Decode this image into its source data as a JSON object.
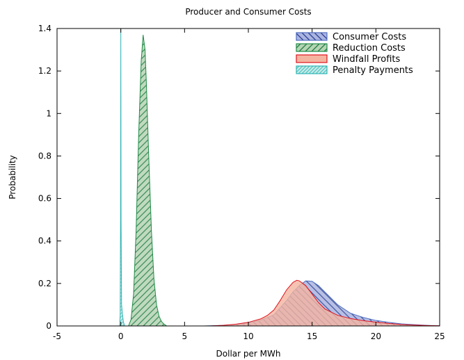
{
  "chart_data": {
    "type": "area",
    "title": "Producer and Consumer Costs",
    "xlabel": "Dollar per MWh",
    "ylabel": "Probability",
    "xlim": [
      -5,
      25
    ],
    "ylim": [
      0,
      1.4
    ],
    "xticks": [
      -5,
      0,
      5,
      10,
      15,
      20,
      25
    ],
    "yticks": [
      0,
      0.2,
      0.4,
      0.6,
      0.8,
      1,
      1.2,
      1.4
    ],
    "xtick_labels": [
      "-5",
      "0",
      "5",
      "10",
      "15",
      "20",
      "25"
    ],
    "ytick_labels": [
      "0",
      "0.2",
      "0.4",
      "0.6",
      "0.8",
      "1",
      "1.2",
      "1.4"
    ],
    "legend_position": "top-right",
    "grid": false,
    "series": [
      {
        "name": "Consumer Costs",
        "fill": "#aab4e0",
        "stroke": "#4f6fc0",
        "hatch": "#283c90",
        "pattern": "hatch-back",
        "x": [
          6.5,
          8,
          9,
          10,
          11,
          12,
          13,
          13.5,
          14,
          14.5,
          15,
          15.5,
          16,
          16.5,
          17,
          18,
          19,
          20,
          21,
          22,
          23,
          24,
          25
        ],
        "y": [
          0,
          0.003,
          0.007,
          0.014,
          0.028,
          0.052,
          0.12,
          0.16,
          0.19,
          0.212,
          0.21,
          0.19,
          0.16,
          0.13,
          0.1,
          0.06,
          0.04,
          0.026,
          0.017,
          0.01,
          0.006,
          0.003,
          0.001
        ]
      },
      {
        "name": "Reduction Costs",
        "fill": "#b4d4b4",
        "stroke": "#1e8c46",
        "hatch": "#1e7a3c",
        "pattern": "hatch-fwd",
        "x": [
          0.6,
          0.8,
          1.0,
          1.2,
          1.4,
          1.6,
          1.75,
          1.9,
          2.0,
          2.2,
          2.4,
          2.6,
          2.8,
          3.0,
          3.2,
          3.4,
          3.6
        ],
        "y": [
          0,
          0.03,
          0.15,
          0.45,
          0.9,
          1.25,
          1.37,
          1.3,
          1.15,
          0.78,
          0.45,
          0.22,
          0.1,
          0.045,
          0.02,
          0.008,
          0
        ]
      },
      {
        "name": "Windfall Profits",
        "fill": "#f4b4a0",
        "stroke": "#e0141e",
        "hatch": "",
        "pattern": "solid",
        "x": [
          7,
          8,
          9,
          10,
          11,
          11.5,
          12,
          12.5,
          13,
          13.5,
          13.8,
          14,
          14.5,
          15,
          15.5,
          16,
          17,
          18,
          19,
          20,
          21,
          22,
          23,
          24,
          25
        ],
        "y": [
          0,
          0.003,
          0.008,
          0.017,
          0.034,
          0.05,
          0.075,
          0.12,
          0.17,
          0.205,
          0.215,
          0.212,
          0.19,
          0.15,
          0.11,
          0.08,
          0.05,
          0.035,
          0.025,
          0.018,
          0.012,
          0.007,
          0.004,
          0.002,
          0.001
        ]
      },
      {
        "name": "Penalty Payments",
        "fill": "#c8ece8",
        "stroke": "#30b4b4",
        "hatch": "#50c4c4",
        "pattern": "hatch-dense",
        "x": [
          -0.1,
          -0.05,
          -0.02,
          0.0,
          0.02,
          0.06,
          0.12,
          0.2,
          0.3
        ],
        "y": [
          0,
          0.05,
          0.5,
          1.4,
          0.5,
          0.1,
          0.06,
          0.02,
          0
        ]
      }
    ]
  }
}
